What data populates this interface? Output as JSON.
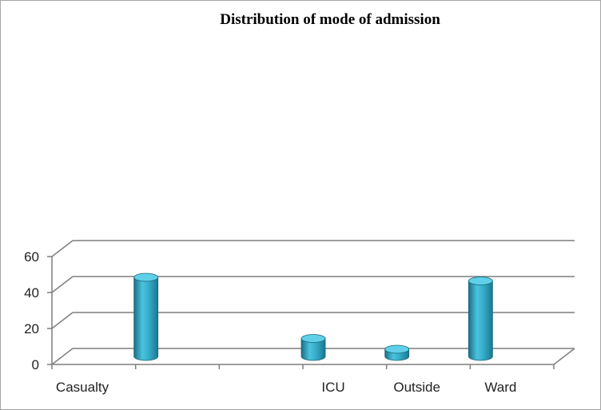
{
  "chart_data": {
    "type": "bar",
    "style": "3d-cylinder",
    "title": "Distribution  of mode of admission",
    "xlabel": "",
    "ylabel": "",
    "ylim": [
      0,
      60
    ],
    "yticks": [
      0,
      20,
      40,
      60
    ],
    "grid": true,
    "legend": "none",
    "axis_categories": [
      "Casualty",
      "",
      "",
      "ICU",
      "Outside",
      "Ward"
    ],
    "bars": [
      {
        "category_index": 1,
        "value": 44
      },
      {
        "category_index": 3,
        "value": 10
      },
      {
        "category_index": 4,
        "value": 4
      },
      {
        "category_index": 5,
        "value": 42
      }
    ],
    "bar_color": "#31a8c6",
    "gridline_color": "#7f7f7f"
  }
}
